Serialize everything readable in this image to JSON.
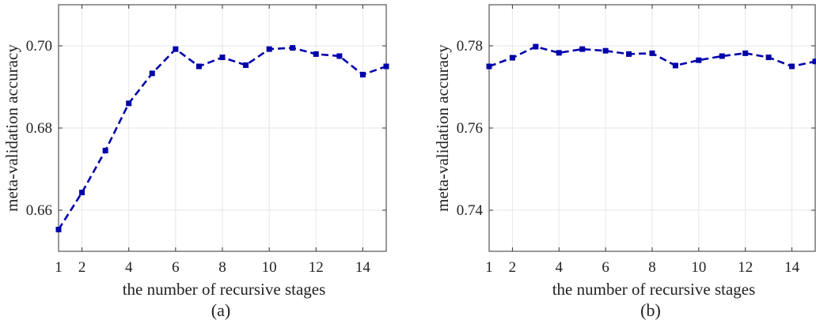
{
  "chart_data": [
    {
      "type": "line",
      "caption": "(a)",
      "xlabel": "the number of recursive stages",
      "ylabel": "meta-validation accuracy",
      "xlim": [
        1,
        15
      ],
      "ylim": [
        0.65,
        0.71
      ],
      "xticks": [
        1,
        2,
        4,
        6,
        8,
        10,
        12,
        14
      ],
      "xtick_labels": [
        "1",
        "2",
        "4",
        "6",
        "8",
        "10",
        "12",
        "14"
      ],
      "yticks": [
        0.66,
        0.68,
        0.7
      ],
      "ytick_labels": [
        "0.66",
        "0.68",
        "0.70"
      ],
      "grid": true,
      "line_color": "#0000aa",
      "line_style": "dashed",
      "marker": "square",
      "series": [
        {
          "x": [
            1,
            2,
            3,
            4,
            5,
            6,
            7,
            8,
            9,
            10,
            11,
            12,
            13,
            14,
            15
          ],
          "values": [
            0.6553,
            0.6643,
            0.6745,
            0.686,
            0.6933,
            0.6992,
            0.695,
            0.6972,
            0.6953,
            0.6992,
            0.6995,
            0.698,
            0.6975,
            0.693,
            0.695
          ]
        }
      ]
    },
    {
      "type": "line",
      "caption": "(b)",
      "xlabel": "the number of recursive stages",
      "ylabel": "meta-validation accuracy",
      "xlim": [
        1,
        15
      ],
      "ylim": [
        0.73,
        0.79
      ],
      "xticks": [
        1,
        2,
        4,
        6,
        8,
        10,
        12,
        14
      ],
      "xtick_labels": [
        "1",
        "2",
        "4",
        "6",
        "8",
        "10",
        "12",
        "14"
      ],
      "yticks": [
        0.74,
        0.76,
        0.78
      ],
      "ytick_labels": [
        "0.74",
        "0.76",
        "0.78"
      ],
      "grid": true,
      "line_color": "#0000aa",
      "line_style": "dashed",
      "marker": "square",
      "series": [
        {
          "x": [
            1,
            2,
            3,
            4,
            5,
            6,
            7,
            8,
            9,
            10,
            11,
            12,
            13,
            14,
            15
          ],
          "values": [
            0.775,
            0.7771,
            0.7798,
            0.7783,
            0.7792,
            0.7788,
            0.778,
            0.7782,
            0.7752,
            0.7765,
            0.7775,
            0.7782,
            0.7772,
            0.775,
            0.7762
          ]
        }
      ]
    }
  ]
}
